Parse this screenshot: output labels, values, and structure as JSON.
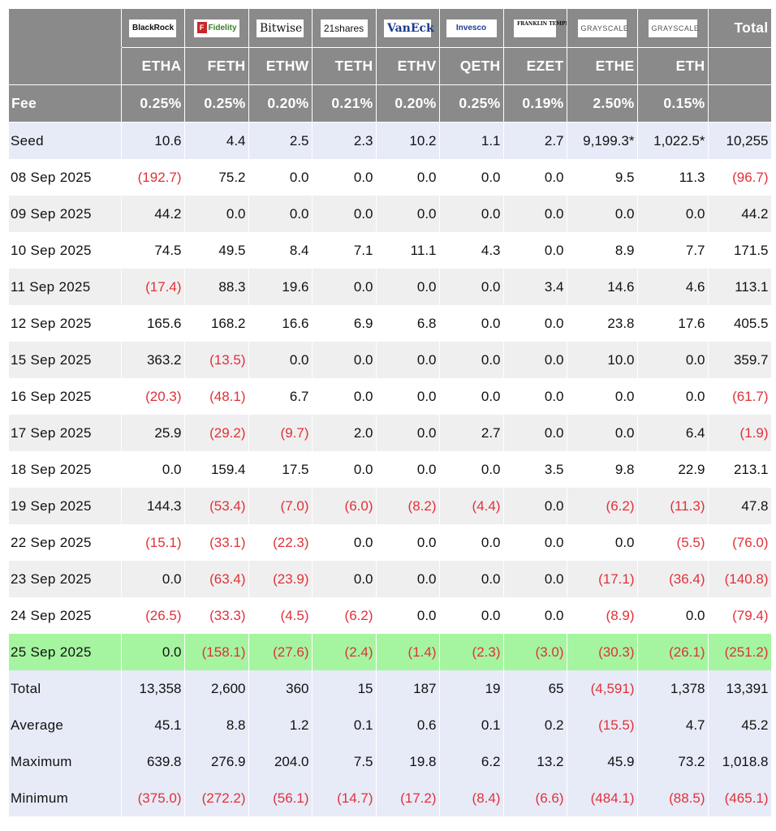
{
  "header": {
    "corner": "",
    "total_label": "Total",
    "fee_label": "Fee",
    "funds": [
      {
        "logo": "BlackRock",
        "ticker": "ETHA",
        "fee": "0.25%"
      },
      {
        "logo": "Fidelity",
        "ticker": "FETH",
        "fee": "0.25%"
      },
      {
        "logo": "Bitwise",
        "ticker": "ETHW",
        "fee": "0.20%"
      },
      {
        "logo": "21shares",
        "ticker": "TETH",
        "fee": "0.21%"
      },
      {
        "logo": "VanEck",
        "ticker": "ETHV",
        "fee": "0.20%"
      },
      {
        "logo": "Invesco",
        "ticker": "QETH",
        "fee": "0.25%"
      },
      {
        "logo": "FRANKLIN TEMPLETON",
        "ticker": "EZET",
        "fee": "0.19%"
      },
      {
        "logo": "GRAYSCALE",
        "ticker": "ETHE",
        "fee": "2.50%"
      },
      {
        "logo": "GRAYSCALE",
        "ticker": "ETH",
        "fee": "0.15%"
      }
    ]
  },
  "rows": [
    {
      "label": "Seed",
      "values": [
        "10.6",
        "4.4",
        "2.5",
        "2.3",
        "10.2",
        "1.1",
        "2.7",
        "9,199.3*",
        "1,022.5*",
        "10,255"
      ]
    },
    {
      "label": "08 Sep 2025",
      "values": [
        "(192.7)",
        "75.2",
        "0.0",
        "0.0",
        "0.0",
        "0.0",
        "0.0",
        "9.5",
        "11.3",
        "(96.7)"
      ]
    },
    {
      "label": "09 Sep 2025",
      "values": [
        "44.2",
        "0.0",
        "0.0",
        "0.0",
        "0.0",
        "0.0",
        "0.0",
        "0.0",
        "0.0",
        "44.2"
      ]
    },
    {
      "label": "10 Sep 2025",
      "values": [
        "74.5",
        "49.5",
        "8.4",
        "7.1",
        "11.1",
        "4.3",
        "0.0",
        "8.9",
        "7.7",
        "171.5"
      ]
    },
    {
      "label": "11 Sep 2025",
      "values": [
        "(17.4)",
        "88.3",
        "19.6",
        "0.0",
        "0.0",
        "0.0",
        "3.4",
        "14.6",
        "4.6",
        "113.1"
      ]
    },
    {
      "label": "12 Sep 2025",
      "values": [
        "165.6",
        "168.2",
        "16.6",
        "6.9",
        "6.8",
        "0.0",
        "0.0",
        "23.8",
        "17.6",
        "405.5"
      ]
    },
    {
      "label": "15 Sep 2025",
      "values": [
        "363.2",
        "(13.5)",
        "0.0",
        "0.0",
        "0.0",
        "0.0",
        "0.0",
        "10.0",
        "0.0",
        "359.7"
      ]
    },
    {
      "label": "16 Sep 2025",
      "values": [
        "(20.3)",
        "(48.1)",
        "6.7",
        "0.0",
        "0.0",
        "0.0",
        "0.0",
        "0.0",
        "0.0",
        "(61.7)"
      ]
    },
    {
      "label": "17 Sep 2025",
      "values": [
        "25.9",
        "(29.2)",
        "(9.7)",
        "2.0",
        "0.0",
        "2.7",
        "0.0",
        "0.0",
        "6.4",
        "(1.9)"
      ]
    },
    {
      "label": "18 Sep 2025",
      "values": [
        "0.0",
        "159.4",
        "17.5",
        "0.0",
        "0.0",
        "0.0",
        "3.5",
        "9.8",
        "22.9",
        "213.1"
      ]
    },
    {
      "label": "19 Sep 2025",
      "values": [
        "144.3",
        "(53.4)",
        "(7.0)",
        "(6.0)",
        "(8.2)",
        "(4.4)",
        "0.0",
        "(6.2)",
        "(11.3)",
        "47.8"
      ]
    },
    {
      "label": "22 Sep 2025",
      "values": [
        "(15.1)",
        "(33.1)",
        "(22.3)",
        "0.0",
        "0.0",
        "0.0",
        "0.0",
        "0.0",
        "(5.5)",
        "(76.0)"
      ]
    },
    {
      "label": "23 Sep 2025",
      "values": [
        "0.0",
        "(63.4)",
        "(23.9)",
        "0.0",
        "0.0",
        "0.0",
        "0.0",
        "(17.1)",
        "(36.4)",
        "(140.8)"
      ]
    },
    {
      "label": "24 Sep 2025",
      "values": [
        "(26.5)",
        "(33.3)",
        "(4.5)",
        "(6.2)",
        "0.0",
        "0.0",
        "0.0",
        "(8.9)",
        "0.0",
        "(79.4)"
      ]
    },
    {
      "label": "25 Sep 2025",
      "values": [
        "0.0",
        "(158.1)",
        "(27.6)",
        "(2.4)",
        "(1.4)",
        "(2.3)",
        "(3.0)",
        "(30.3)",
        "(26.1)",
        "(251.2)"
      ]
    },
    {
      "label": "Total",
      "values": [
        "13,358",
        "2,600",
        "360",
        "15",
        "187",
        "19",
        "65",
        "(4,591)",
        "1,378",
        "13,391"
      ]
    },
    {
      "label": "Average",
      "values": [
        "45.1",
        "8.8",
        "1.2",
        "0.1",
        "0.6",
        "0.1",
        "0.2",
        "(15.5)",
        "4.7",
        "45.2"
      ]
    },
    {
      "label": "Maximum",
      "values": [
        "639.8",
        "276.9",
        "204.0",
        "7.5",
        "19.8",
        "6.2",
        "13.2",
        "45.9",
        "73.2",
        "1,018.8"
      ]
    },
    {
      "label": "Minimum",
      "values": [
        "(375.0)",
        "(272.2)",
        "(56.1)",
        "(14.7)",
        "(17.2)",
        "(8.4)",
        "(6.6)",
        "(484.1)",
        "(88.5)",
        "(465.1)"
      ]
    }
  ],
  "colors": {
    "header_bg": "#8a8a8a",
    "negative": "#e0313a",
    "seed_stats_bg": "#e7ebf7",
    "stripe_bg": "#efefef",
    "highlight_bg": "#a5f5a0"
  }
}
